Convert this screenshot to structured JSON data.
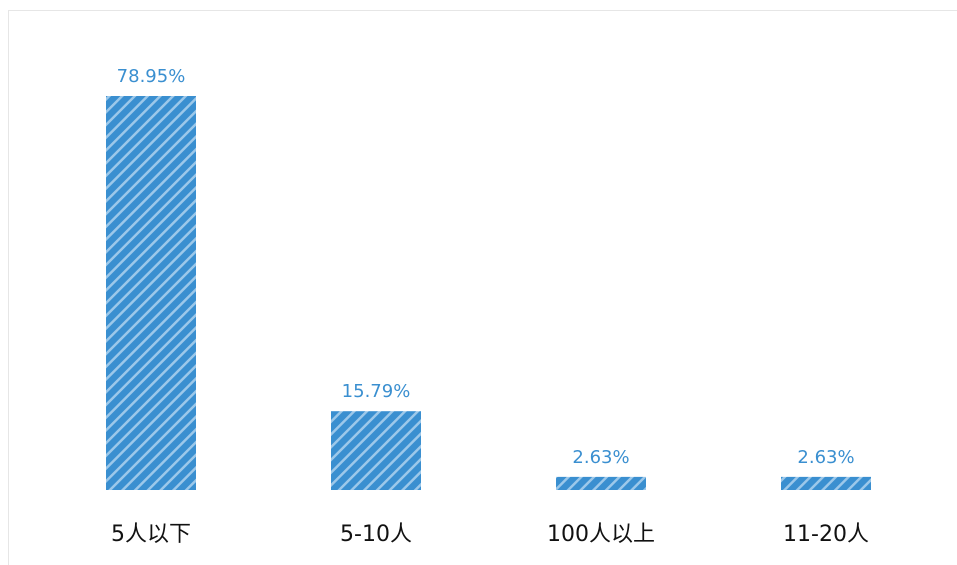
{
  "chart_data": {
    "type": "bar",
    "title": "",
    "xlabel": "",
    "ylabel": "",
    "categories": [
      "5人以下",
      "5-10人",
      "100人以上",
      "11-20人"
    ],
    "values": [
      78.95,
      15.79,
      2.63,
      2.63
    ],
    "value_labels": [
      "78.95%",
      "15.79%",
      "2.63%",
      "2.63%"
    ],
    "ylim": [
      0,
      78.95
    ],
    "grid": false,
    "legend": "none",
    "bar_color": "#3a8fd0",
    "bar_fill": "diagonal-stripes",
    "label_color": "#3a8fd0"
  }
}
